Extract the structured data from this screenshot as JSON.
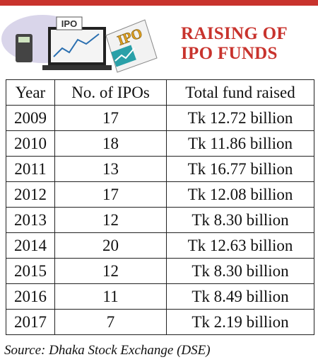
{
  "header": {
    "title_lines": [
      "RAISING OF",
      "IPO FUNDS"
    ],
    "illustration_labels": [
      "IPO",
      "IPO"
    ]
  },
  "table": {
    "columns": [
      "Year",
      "No. of IPOs",
      "Total fund raised"
    ],
    "rows": [
      [
        "2009",
        "17",
        "Tk 12.72 billion"
      ],
      [
        "2010",
        "18",
        "Tk 11.86 billion"
      ],
      [
        "2011",
        "13",
        "Tk 16.77 billion"
      ],
      [
        "2012",
        "17",
        "Tk 12.08 billion"
      ],
      [
        "2013",
        "12",
        "Tk 8.30 billion"
      ],
      [
        "2014",
        "20",
        "Tk 12.63 billion"
      ],
      [
        "2015",
        "12",
        "Tk 8.30 billion"
      ],
      [
        "2016",
        "11",
        "Tk 8.49 billion"
      ],
      [
        "2017",
        "7",
        "Tk 2.19 billion"
      ]
    ]
  },
  "source": "Source: Dhaka Stock Exchange (DSE)"
}
